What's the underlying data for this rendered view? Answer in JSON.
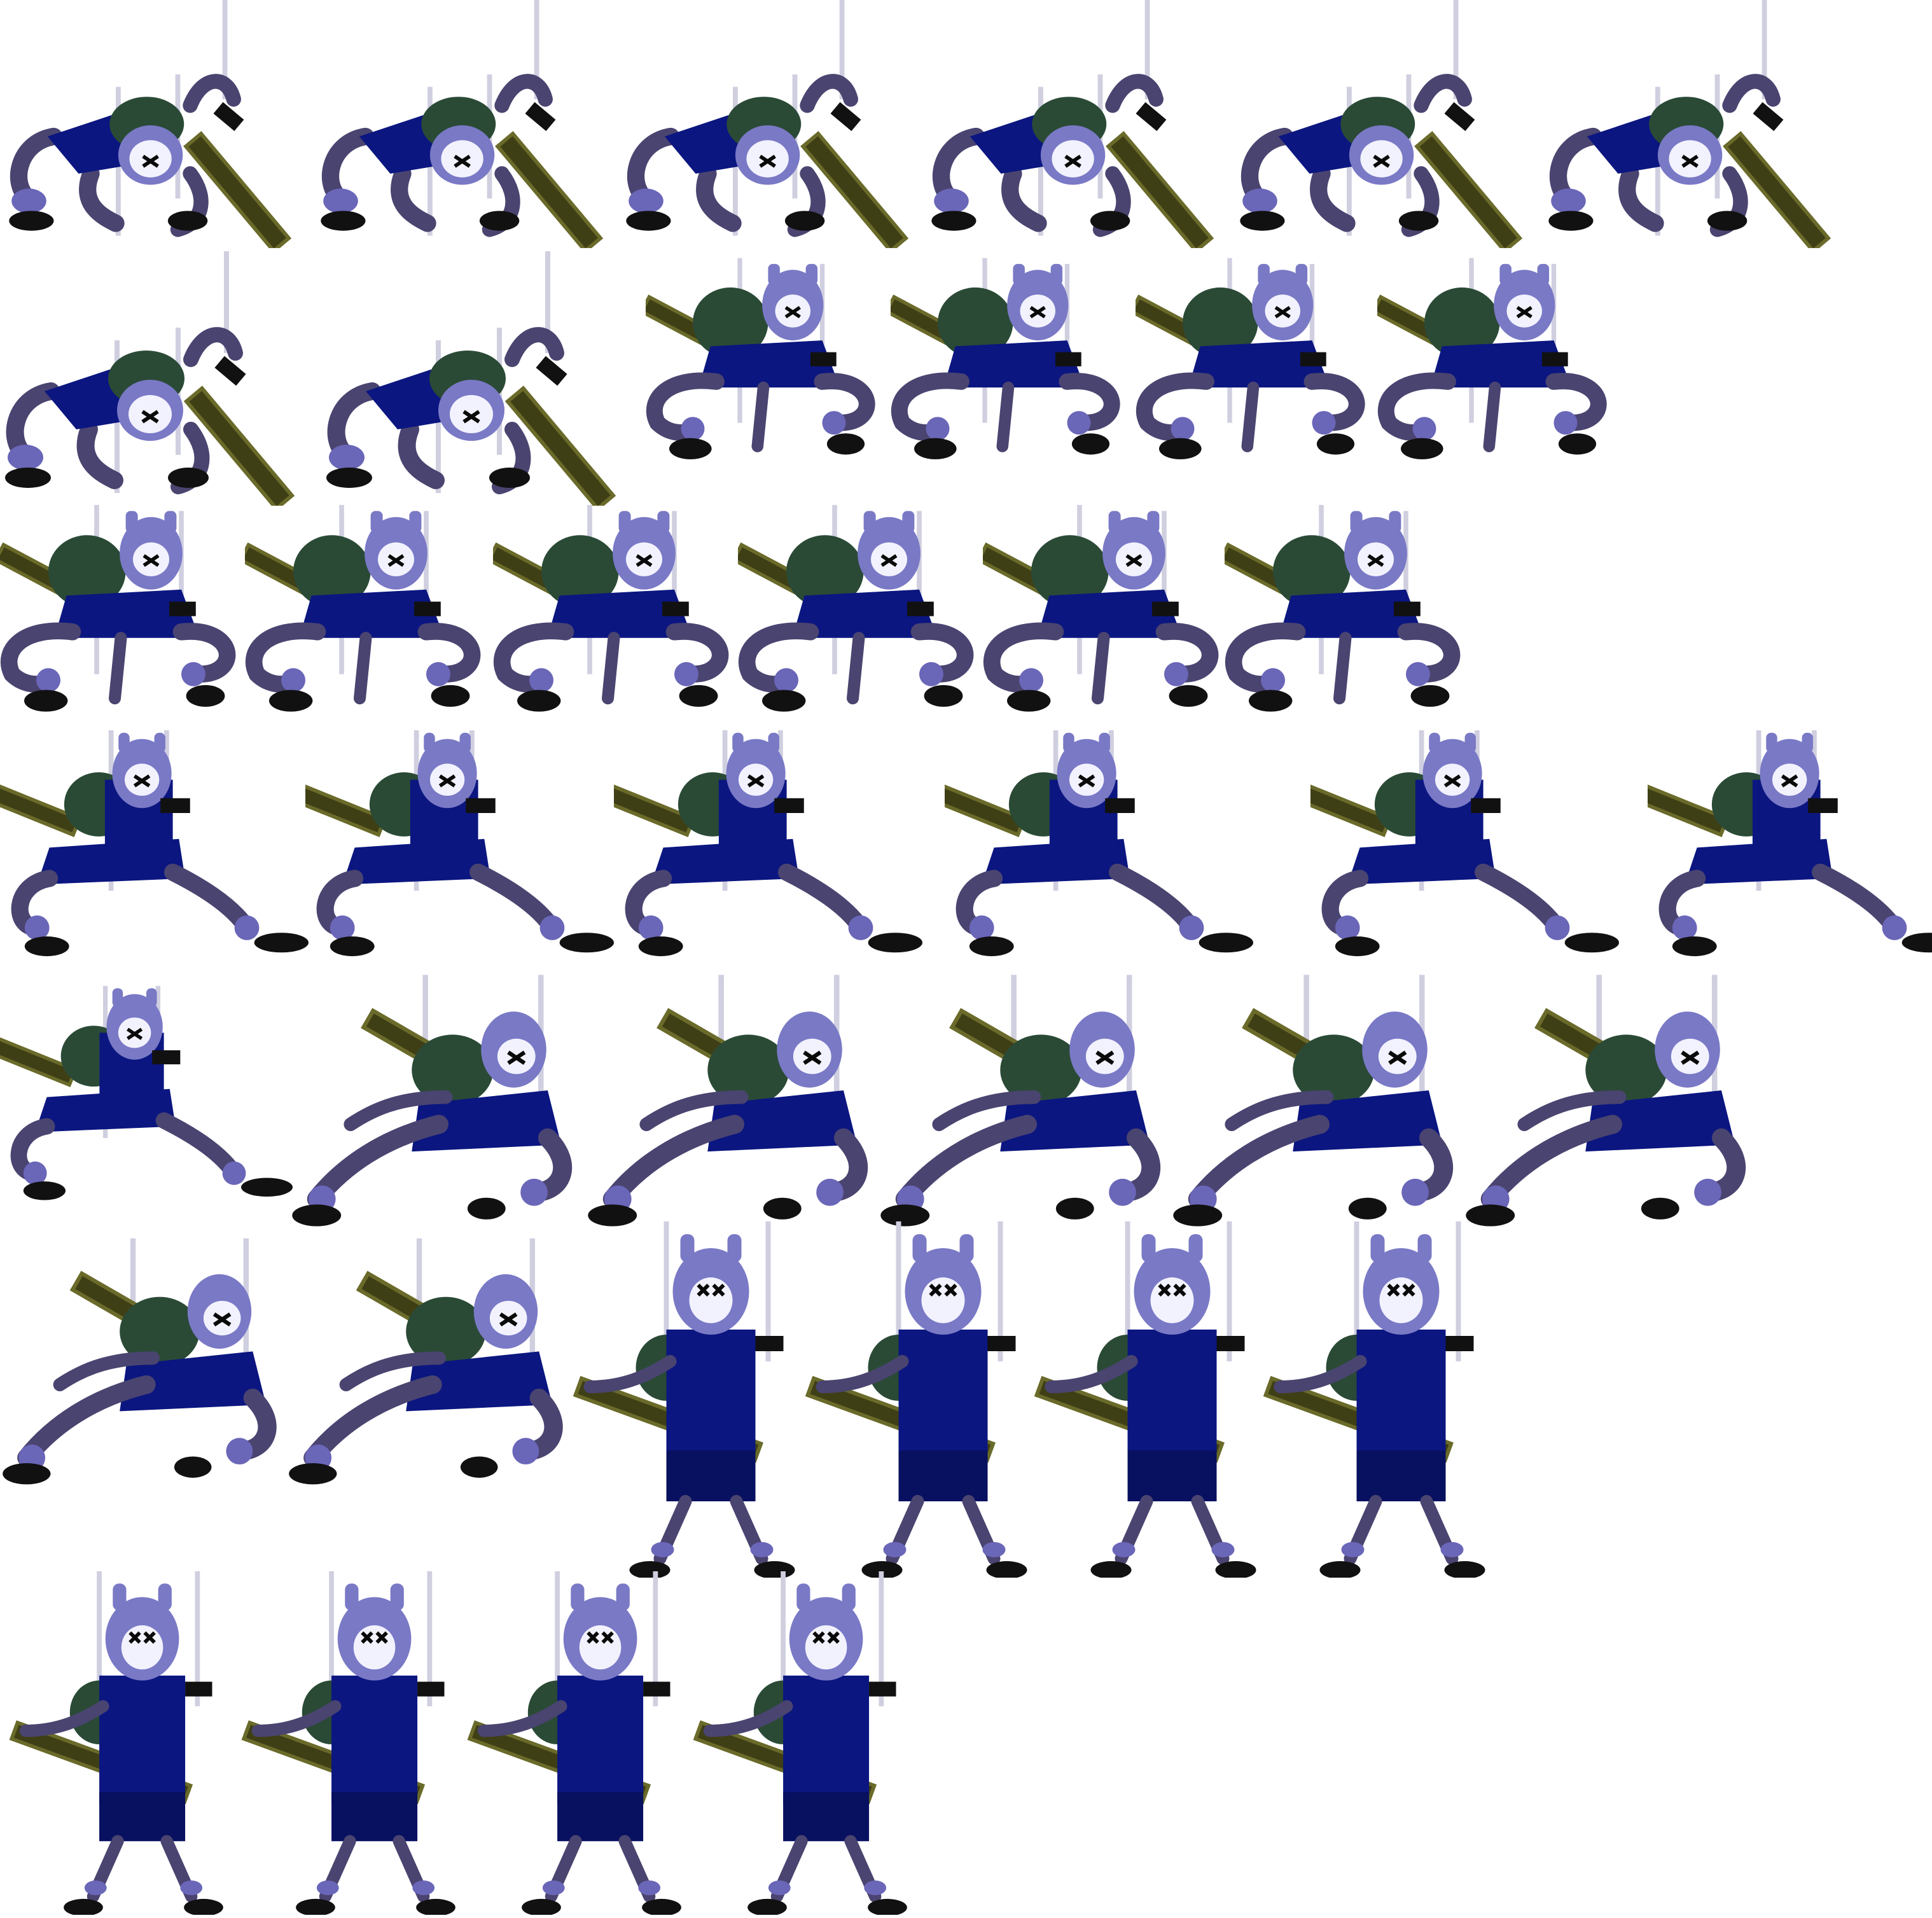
{
  "sheet": {
    "kind": "sprite-sheet",
    "background": "#ffffff",
    "palette": {
      "skin": "#4a4470",
      "skin_light": "#6a66b8",
      "outfit": "#0b1680",
      "outfit_dark": "#081060",
      "backpack": "#2a4a36",
      "hood": "#7a79c6",
      "boot": "#111111",
      "sword": "#3f3f16",
      "sword_edge": "#6a6a2a",
      "string": "#cfcfe0",
      "ink": "#0a0a0a",
      "eye": "#f2f2ff"
    },
    "animations": [
      {
        "name": "crouch-sword-drag",
        "pose": "crouch",
        "frame_count": 8
      },
      {
        "name": "idle-squat",
        "pose": "squat",
        "frame_count": 10
      },
      {
        "name": "lunge",
        "pose": "lunge",
        "frame_count": 7
      },
      {
        "name": "lean-strike",
        "pose": "lean",
        "frame_count": 7
      },
      {
        "name": "stand-sword-shoulder",
        "pose": "stand",
        "frame_count": 8
      }
    ]
  }
}
